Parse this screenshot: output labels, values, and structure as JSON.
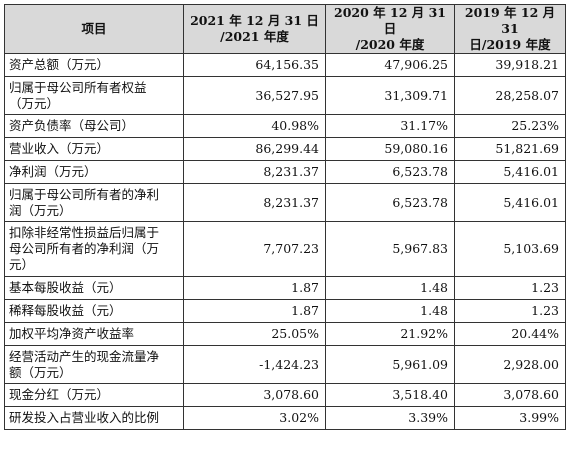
{
  "table": {
    "headers": [
      "项目",
      [
        "2021 年 12 月 31 日",
        "/2021 年度"
      ],
      [
        "2020 年 12 月 31 日",
        "/2020 年度"
      ],
      [
        "2019 年 12 月 31",
        "日/2019 年度"
      ]
    ],
    "rows": [
      {
        "label": [
          "资产总额（万元）"
        ],
        "values": [
          "64,156.35",
          "47,906.25",
          "39,918.21"
        ]
      },
      {
        "label": [
          "归属于母公司所有者权益",
          "（万元）"
        ],
        "values": [
          "36,527.95",
          "31,309.71",
          "28,258.07"
        ]
      },
      {
        "label": [
          "资产负债率（母公司）"
        ],
        "values": [
          "40.98%",
          "31.17%",
          "25.23%"
        ]
      },
      {
        "label": [
          "营业收入（万元）"
        ],
        "values": [
          "86,299.44",
          "59,080.16",
          "51,821.69"
        ]
      },
      {
        "label": [
          "净利润（万元）"
        ],
        "values": [
          "8,231.37",
          "6,523.78",
          "5,416.01"
        ]
      },
      {
        "label": [
          "归属于母公司所有者的净利",
          "润（万元）"
        ],
        "values": [
          "8,231.37",
          "6,523.78",
          "5,416.01"
        ]
      },
      {
        "label": [
          "扣除非经常性损益后归属于",
          "母公司所有者的净利润（万",
          "元）"
        ],
        "values": [
          "7,707.23",
          "5,967.83",
          "5,103.69"
        ]
      },
      {
        "label": [
          "基本每股收益（元）"
        ],
        "values": [
          "1.87",
          "1.48",
          "1.23"
        ]
      },
      {
        "label": [
          "稀释每股收益（元）"
        ],
        "values": [
          "1.87",
          "1.48",
          "1.23"
        ]
      },
      {
        "label": [
          "加权平均净资产收益率"
        ],
        "values": [
          "25.05%",
          "21.92%",
          "20.44%"
        ]
      },
      {
        "label": [
          "经营活动产生的现金流量净",
          "额（万元）"
        ],
        "values": [
          "-1,424.23",
          "5,961.09",
          "2,928.00"
        ]
      },
      {
        "label": [
          "现金分红（万元）"
        ],
        "values": [
          "3,078.60",
          "3,518.40",
          "3,078.60"
        ]
      },
      {
        "label": [
          "研发投入占营业收入的比例"
        ],
        "values": [
          "3.02%",
          "3.39%",
          "3.99%"
        ]
      }
    ]
  }
}
